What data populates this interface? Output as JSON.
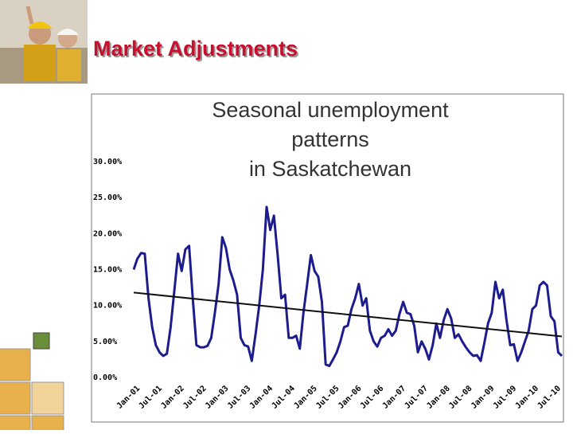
{
  "slide_title": "Market Adjustments",
  "chart_data": {
    "type": "line",
    "title": "Seasonal unemployment patterns in Saskatchewan",
    "categories": [
      "Jan-01",
      null,
      null,
      null,
      null,
      null,
      "Jul-01",
      null,
      null,
      null,
      null,
      null,
      "Jan-02",
      null,
      null,
      null,
      null,
      null,
      "Jul-02",
      null,
      null,
      null,
      null,
      null,
      "Jan-03",
      null,
      null,
      null,
      null,
      null,
      "Jul-03",
      null,
      null,
      null,
      null,
      null,
      "Jan-04",
      null,
      null,
      null,
      null,
      null,
      "Jul-04",
      null,
      null,
      null,
      null,
      null,
      "Jan-05",
      null,
      null,
      null,
      null,
      null,
      "Jul-05",
      null,
      null,
      null,
      null,
      null,
      "Jan-06",
      null,
      null,
      null,
      null,
      null,
      "Jul-06",
      null,
      null,
      null,
      null,
      null,
      "Jan-07",
      null,
      null,
      null,
      null,
      null,
      "Jul-07",
      null,
      null,
      null,
      null,
      null,
      "Jan-08",
      null,
      null,
      null,
      null,
      null,
      "Jul-08",
      null,
      null,
      null,
      null,
      null,
      "Jan-09",
      null,
      null,
      null,
      null,
      null,
      "Jul-09",
      null,
      null,
      null,
      null,
      null,
      "Jan-10",
      null,
      null,
      null,
      null,
      null,
      "Jul-10",
      null,
      null
    ],
    "values": [
      15,
      16.5,
      17.3,
      17.2,
      11,
      7,
      4.5,
      3.5,
      3,
      3.3,
      7,
      12,
      17.2,
      14.8,
      17.8,
      18.3,
      11,
      4.5,
      4.2,
      4.2,
      4.4,
      5.5,
      9,
      13,
      19.5,
      18,
      15,
      13.5,
      11.5,
      5.5,
      4.5,
      4.3,
      2.3,
      6,
      10,
      15,
      23.7,
      20.5,
      22.5,
      17,
      11,
      11.5,
      5.5,
      5.5,
      5.8,
      4,
      9,
      13,
      17,
      14.8,
      14,
      10.5,
      1.8,
      1.6,
      2.5,
      3.5,
      5,
      7,
      7.2,
      9.5,
      11,
      13,
      10,
      11,
      6.5,
      5,
      4.3,
      5.5,
      5.8,
      6.7,
      5.8,
      6.5,
      8.8,
      10.5,
      9,
      8.8,
      7.2,
      3.5,
      5,
      4,
      2.5,
      4.5,
      7.5,
      5.5,
      8,
      9.5,
      8.2,
      5.5,
      6,
      5,
      4.2,
      3.5,
      3,
      3.1,
      2.3,
      4.8,
      7.5,
      9,
      13.3,
      11,
      12.2,
      8,
      4.5,
      4.6,
      2.3,
      3.5,
      5,
      6.5,
      9.5,
      10,
      12.8,
      13.3,
      12.8,
      8.5,
      7.8,
      3.5,
      3
    ],
    "color": "#1c1c8e",
    "trend": [
      11.8,
      5.7
    ],
    "trend_color": "#111111",
    "ylim": [
      0,
      30
    ],
    "yticks": [
      {
        "value": 0,
        "label": "0.00%"
      },
      {
        "value": 5,
        "label": "5.00%"
      },
      {
        "value": 10,
        "label": "10.00%"
      },
      {
        "value": 15,
        "label": "15.00%"
      },
      {
        "value": 20,
        "label": "20.00%"
      },
      {
        "value": 25,
        "label": "25.00%"
      },
      {
        "value": 30,
        "label": "30.00%"
      }
    ],
    "grid": false
  }
}
